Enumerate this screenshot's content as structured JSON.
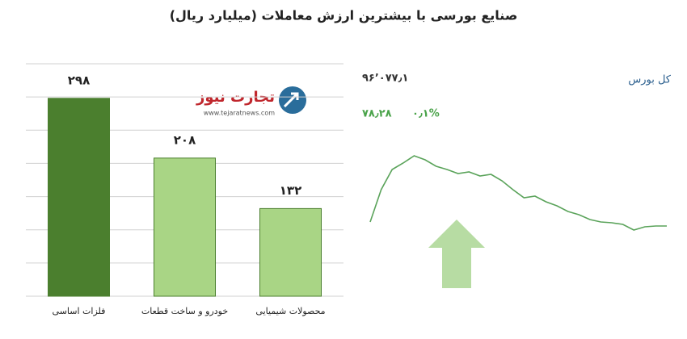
{
  "title": "صنایع بورسی با بیشترین ارزش معاملات  (میلیارد ریال)",
  "logo": {
    "name": "تجارت نیوز",
    "url": "www.tejaratnews.com"
  },
  "chart_data": [
    {
      "type": "bar",
      "categories": [
        "فلزات اساسی",
        "خودرو و ساخت قطعات",
        "محصولات شیمیایی"
      ],
      "values": [
        298,
        208,
        132
      ],
      "value_labels": [
        "۲۹۸",
        "۲۰۸",
        "۱۳۲"
      ],
      "colors": [
        "#4b7f2e",
        "#a9d585",
        "#a9d585"
      ],
      "ylim": [
        0,
        350
      ],
      "yticks": [
        0,
        50,
        100,
        150,
        200,
        250,
        300,
        350
      ],
      "grid": true
    },
    {
      "type": "line",
      "title": "کل بورس",
      "index_value": "۹۶٬۰۷۷٫۱",
      "change": "۷۸٫۲۸",
      "change_percent": "۰٫۱%",
      "color": "#5aa35a",
      "values": [
        25,
        65,
        90,
        98,
        107,
        102,
        94,
        90,
        85,
        87,
        82,
        84,
        76,
        65,
        55,
        57,
        50,
        45,
        38,
        34,
        28,
        25,
        24,
        22,
        15,
        19,
        20,
        20
      ],
      "ylim": [
        0,
        120
      ]
    }
  ]
}
